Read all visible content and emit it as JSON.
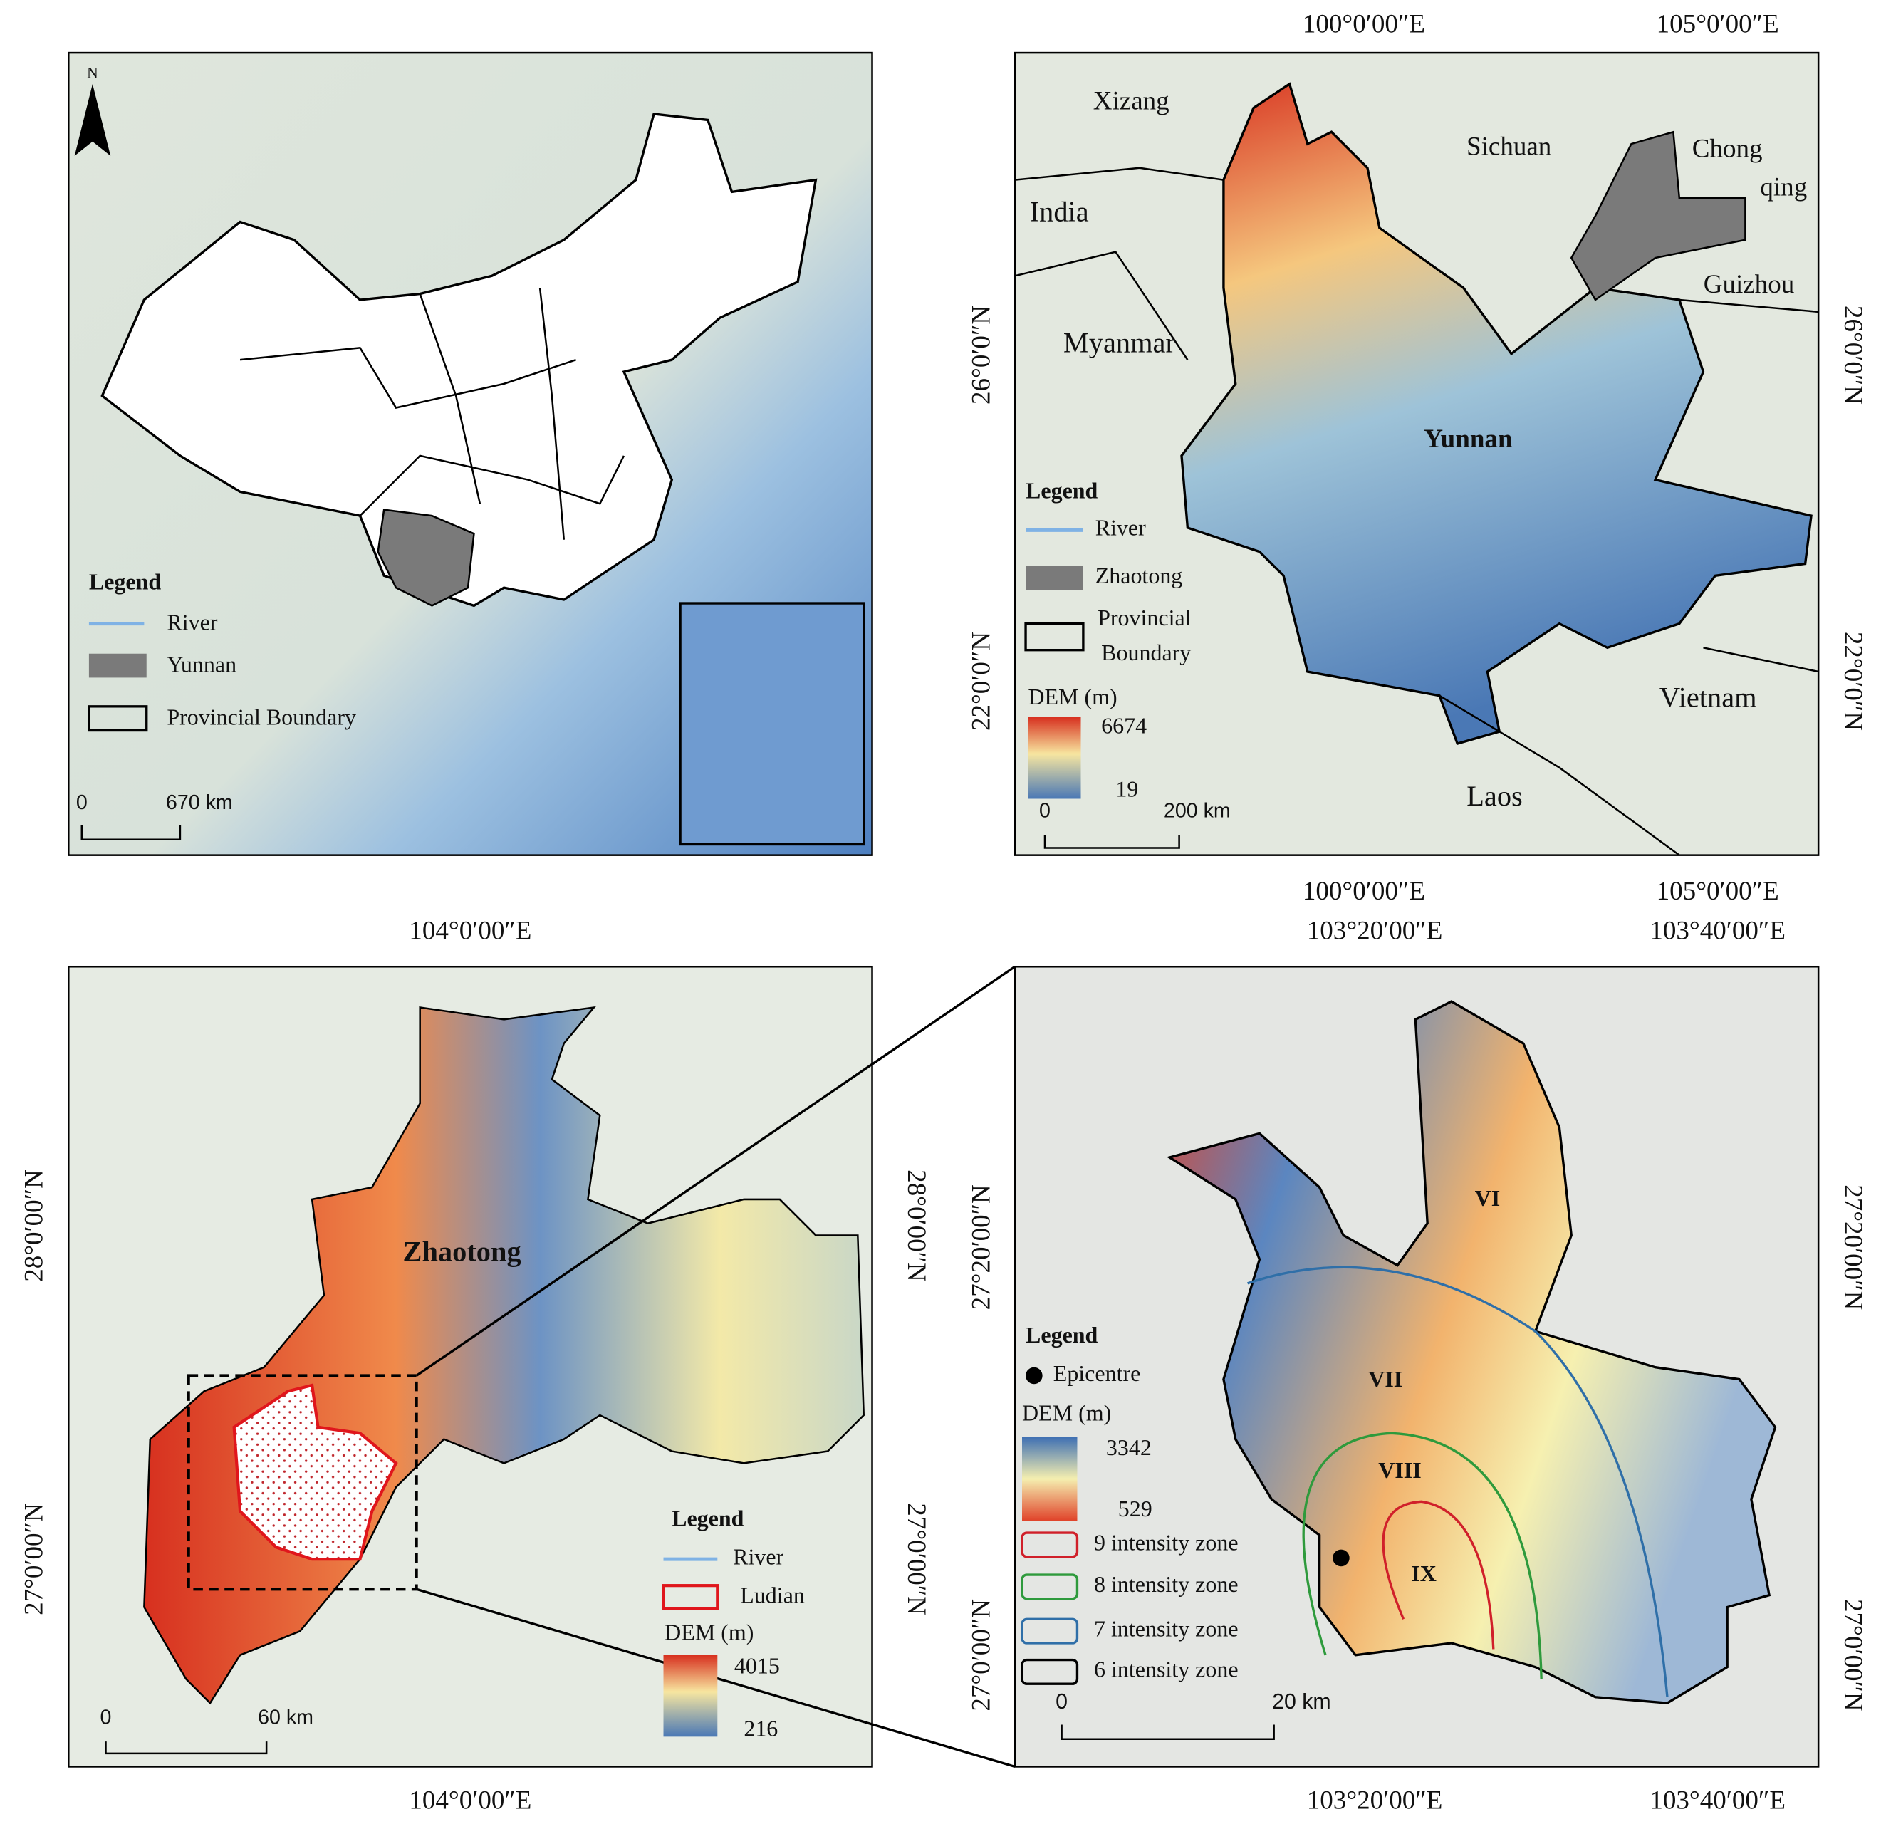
{
  "panel_a": {
    "north": "N",
    "legend": {
      "title": "Legend",
      "items": [
        "River",
        "Yunnan",
        "Provincial Boundary"
      ]
    },
    "scale": [
      "0",
      "670 km"
    ]
  },
  "panel_b": {
    "top_labels": [
      "100°0′00″E",
      "105°0′00″E"
    ],
    "bottom_labels": [
      "100°0′00″E",
      "105°0′00″E"
    ],
    "left_labels": [
      "26°0′0″N",
      "22°0′0″N"
    ],
    "right_labels": [
      "26°0′0″N",
      "22°0′0″N"
    ],
    "places": [
      "Xizang",
      "India",
      "Sichuan",
      "Chong",
      "qing",
      "Guizhou",
      "Myanmar",
      "Yunnan",
      "Vietnam",
      "Laos"
    ],
    "legend": {
      "title": "Legend",
      "items": [
        "River",
        "Zhaotong",
        "Provincial",
        "Boundary"
      ],
      "dem_title": "DEM (m)",
      "dem_max": "6674",
      "dem_min": "19"
    },
    "scale": [
      "0",
      "200 km"
    ]
  },
  "panel_c": {
    "top_labels": [
      "104°0′00″E"
    ],
    "bottom_labels": [
      "104°0′00″E"
    ],
    "left_labels": [
      "28°0′00″N",
      "27°0′00″N"
    ],
    "right_labels": [
      "28°0′00″N",
      "27°0′00″N"
    ],
    "place": "Zhaotong",
    "legend": {
      "title": "Legend",
      "items": [
        "River",
        "Ludian"
      ],
      "dem_title": "DEM (m)",
      "dem_max": "4015",
      "dem_min": "216"
    },
    "scale": [
      "0",
      "60 km"
    ]
  },
  "panel_d": {
    "top_labels": [
      "103°20′00″E",
      "103°40′00″E"
    ],
    "bottom_labels": [
      "103°20′00″E",
      "103°40′00″E"
    ],
    "left_labels": [
      "27°20′00″N",
      "27°0′00″N"
    ],
    "right_labels": [
      "27°20′00″N",
      "27°0′00″N"
    ],
    "zones": [
      "VI",
      "VII",
      "VIII",
      "IX"
    ],
    "legend": {
      "title": "Legend",
      "epicentre": "Epicentre",
      "dem_title": "DEM (m)",
      "dem_max": "3342",
      "dem_min": "529",
      "items": [
        "9 intensity zone",
        "8 intensity zone",
        "7 intensity zone",
        "6 intensity zone"
      ]
    },
    "scale": [
      "0",
      "20 km"
    ]
  }
}
